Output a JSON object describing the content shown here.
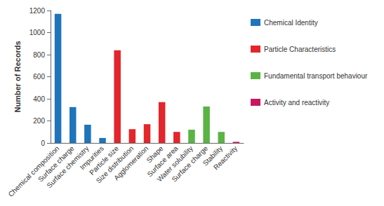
{
  "chart_data": {
    "type": "bar",
    "y_label": "Number of Records",
    "categories": [
      "Chemical composition",
      "Surface charge",
      "Surface chemistry",
      "Impurities",
      "Particle size",
      "Size distribution",
      "Agglomeration",
      "Shape",
      "Surface area",
      "Water solubility",
      "Surface charge",
      "Stability",
      "Reactivity"
    ],
    "series": [
      {
        "name": "Chemical Identity",
        "color": "#1f74bc",
        "values": [
          1170,
          325,
          165,
          45,
          null,
          null,
          null,
          null,
          null,
          null,
          null,
          null,
          null
        ]
      },
      {
        "name": "Particle Characteristics",
        "color": "#e2262b",
        "values": [
          null,
          null,
          null,
          null,
          840,
          125,
          170,
          370,
          100,
          null,
          null,
          null,
          null
        ]
      },
      {
        "name": "Fundamental transport behaviour",
        "color": "#5bb345",
        "values": [
          null,
          null,
          null,
          null,
          null,
          null,
          null,
          null,
          null,
          120,
          330,
          100,
          null
        ]
      },
      {
        "name": "Activity and reactivity",
        "color": "#c8175e",
        "values": [
          null,
          null,
          null,
          null,
          null,
          null,
          null,
          null,
          null,
          null,
          null,
          null,
          10
        ]
      }
    ],
    "ylim": [
      0,
      1200
    ],
    "yticks": [
      0,
      200,
      400,
      600,
      800,
      1000,
      1200
    ],
    "grid": false,
    "legend": "right"
  }
}
